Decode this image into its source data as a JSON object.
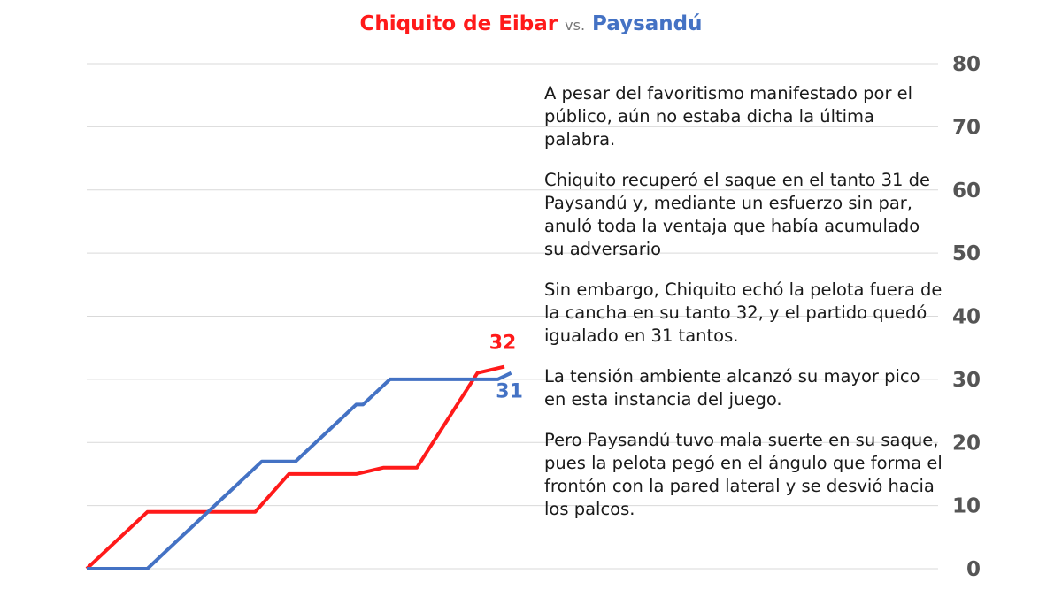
{
  "colors": {
    "series_a": "#ff1a1a",
    "series_b": "#4472c4",
    "grid": "#d9d9d9",
    "tick": "#555555"
  },
  "title": {
    "team_a": "Chiquito de Eibar",
    "vs": "vs.",
    "team_b": "Paysandú"
  },
  "narrative": [
    "A pesar del favoritismo manifestado por el público, aún no estaba dicha la última palabra.",
    "Chiquito recuperó el saque en el tanto 31 de Paysandú y, mediante un esfuerzo sin par, anuló toda la ventaja que había acumulado su adversario",
    "Sin embargo, Chiquito echó la pelota fuera de la cancha en su tanto 32, y el partido quedó igualado en 31 tantos.",
    "La tensión ambiente alcanzó su mayor pico en esta instancia del juego.",
    "Pero Paysandú tuvo mala suerte en su saque, pues la pelota pegó en el ángulo que forma el frontón con la pared lateral y se desvió hacia los palcos."
  ],
  "chart_data": {
    "type": "line",
    "title": "Chiquito de Eibar vs. Paysandú",
    "xlabel": "",
    "ylabel": "",
    "ylim": [
      0,
      80
    ],
    "yticks": [
      0,
      10,
      20,
      30,
      40,
      50,
      60,
      70,
      80
    ],
    "xlim": [
      0,
      62
    ],
    "grid": true,
    "y_axis_side": "right",
    "series": [
      {
        "name": "Chiquito de Eibar",
        "end_label": "32",
        "x": [
          0,
          9,
          25,
          30,
          40,
          44,
          45,
          49,
          58,
          62
        ],
        "y": [
          0,
          9,
          9,
          15,
          15,
          16,
          16,
          16,
          31,
          32
        ]
      },
      {
        "name": "Paysandú",
        "end_label": "31",
        "x": [
          0,
          9,
          26,
          31,
          40,
          41,
          45,
          61,
          63
        ],
        "y": [
          0,
          0,
          17,
          17,
          26,
          26,
          30,
          30,
          31
        ]
      }
    ]
  }
}
